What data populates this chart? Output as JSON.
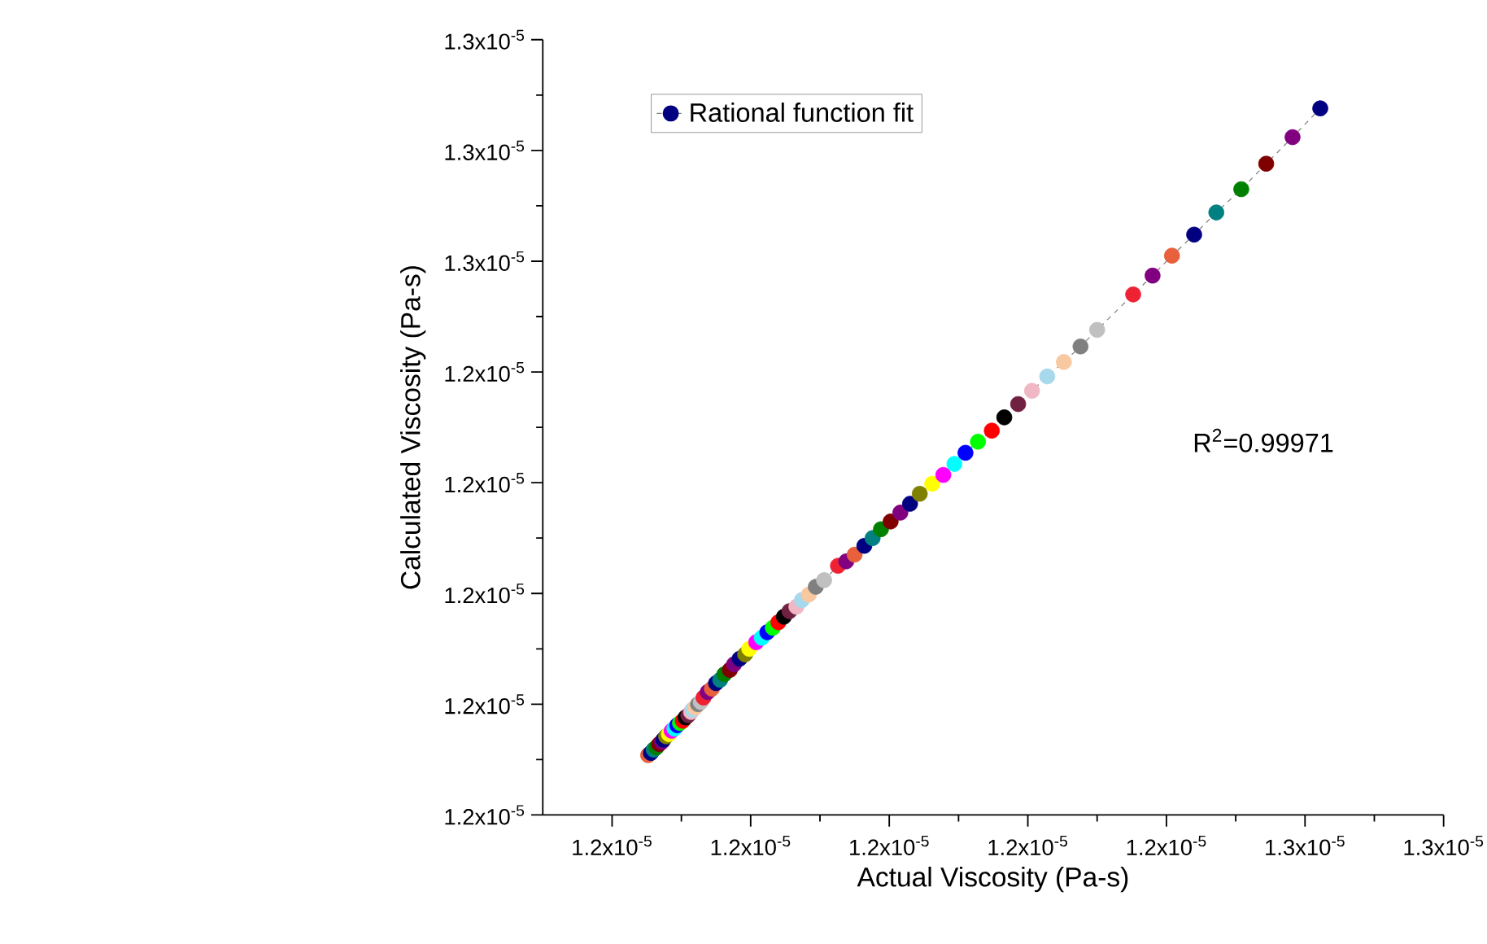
{
  "chart_data": {
    "type": "line",
    "xlabel": "Actual Viscosity (Pa-s)",
    "ylabel": "Calculated Viscosity (Pa-s)",
    "annotations": [
      "R$^{2}$=0.99971"
    ],
    "xlim": [
      1.195e-05,
      1.26e-05
    ],
    "ylim": [
      1.2e-05,
      1.27e-05
    ],
    "xticks": [
      {
        "value": 1.2e-05,
        "label": "1.2x10$^{-5}$"
      },
      {
        "value": 1.21e-05,
        "label": "1.2x10$^{-5}$"
      },
      {
        "value": 1.22e-05,
        "label": "1.2x10$^{-5}$"
      },
      {
        "value": 1.23e-05,
        "label": "1.2x10$^{-5}$"
      },
      {
        "value": 1.24e-05,
        "label": "1.2x10$^{-5}$"
      },
      {
        "value": 1.25e-05,
        "label": "1.3x10$^{-5}$"
      },
      {
        "value": 1.26e-05,
        "label": "1.3x10$^{-5}$"
      }
    ],
    "yticks": [
      {
        "value": 1.2e-05,
        "label": "1.2x10$^{-5}$"
      },
      {
        "value": 1.21e-05,
        "label": "1.2x10$^{-5}$"
      },
      {
        "value": 1.22e-05,
        "label": "1.2x10$^{-5}$"
      },
      {
        "value": 1.23e-05,
        "label": "1.2x10$^{-5}$"
      },
      {
        "value": 1.24e-05,
        "label": "1.2x10$^{-5}$"
      },
      {
        "value": 1.25e-05,
        "label": "1.3x10$^{-5}$"
      },
      {
        "value": 1.26e-05,
        "label": "1.3x10$^{-5}$"
      },
      {
        "value": 1.27e-05,
        "label": "1.3x10$^{-5}$"
      }
    ],
    "legend": "top left",
    "marker": "circle",
    "line_style": "dashed",
    "series": [
      {
        "name": "Rational function fit",
        "color": "#808080",
        "x": [
          1.2026e-05,
          1.2028e-05,
          1.203e-05,
          1.2032e-05,
          1.2034e-05,
          1.2036e-05,
          1.2037e-05,
          1.2039e-05,
          1.2041e-05,
          1.2043e-05,
          1.2045e-05,
          1.2047e-05,
          1.2049e-05,
          1.2051e-05,
          1.2053e-05,
          1.2055e-05,
          1.2057e-05,
          1.2058e-05,
          1.206e-05,
          1.2062e-05,
          1.2064e-05,
          1.2066e-05,
          1.2069e-05,
          1.2072e-05,
          1.2075e-05,
          1.2078e-05,
          1.2081e-05,
          1.2085e-05,
          1.2088e-05,
          1.2092e-05,
          1.2096e-05,
          1.2099e-05,
          1.2104e-05,
          1.2108e-05,
          1.2112e-05,
          1.2116e-05,
          1.212e-05,
          1.2124e-05,
          1.2128e-05,
          1.2133e-05,
          1.2137e-05,
          1.2142e-05,
          1.2147e-05,
          1.2153e-05,
          1.2163e-05,
          1.2169e-05,
          1.2175e-05,
          1.2182e-05,
          1.2188e-05,
          1.2194e-05,
          1.2201e-05,
          1.2208e-05,
          1.2215e-05,
          1.2222e-05,
          1.2231e-05,
          1.2239e-05,
          1.2247e-05,
          1.2255e-05,
          1.2264e-05,
          1.2274e-05,
          1.2283e-05,
          1.2293e-05,
          1.2303e-05,
          1.2314e-05,
          1.2326e-05,
          1.2338e-05,
          1.235e-05,
          1.2376e-05,
          1.239e-05,
          1.2404e-05,
          1.242e-05,
          1.2436e-05,
          1.2454e-05,
          1.2472e-05,
          1.2491e-05,
          1.2511e-05
        ],
        "values": [
          1.2054e-05,
          1.2056e-05,
          1.2059e-05,
          1.2061e-05,
          1.2064e-05,
          1.2066e-05,
          1.2068e-05,
          1.2071e-05,
          1.2073e-05,
          1.2076e-05,
          1.2078e-05,
          1.2081e-05,
          1.2083e-05,
          1.2085e-05,
          1.2088e-05,
          1.209e-05,
          1.2093e-05,
          1.2095e-05,
          1.2097e-05,
          1.21e-05,
          1.2102e-05,
          1.2106e-05,
          1.2111e-05,
          1.2114e-05,
          1.2119e-05,
          1.2122e-05,
          1.2127e-05,
          1.2131e-05,
          1.2136e-05,
          1.2141e-05,
          1.2145e-05,
          1.215e-05,
          1.2156e-05,
          1.216e-05,
          1.2165e-05,
          1.2169e-05,
          1.2174e-05,
          1.2179e-05,
          1.2184e-05,
          1.2188e-05,
          1.2194e-05,
          1.2199e-05,
          1.2206e-05,
          1.2212e-05,
          1.2225e-05,
          1.2229e-05,
          1.2235e-05,
          1.2243e-05,
          1.225e-05,
          1.2258e-05,
          1.2265e-05,
          1.2273e-05,
          1.2281e-05,
          1.229e-05,
          1.2299e-05,
          1.2307e-05,
          1.2317e-05,
          1.2327e-05,
          1.2337e-05,
          1.2347e-05,
          1.2359e-05,
          1.2371e-05,
          1.2383e-05,
          1.2396e-05,
          1.2409e-05,
          1.2423e-05,
          1.2438e-05,
          1.247e-05,
          1.2487e-05,
          1.2505e-05,
          1.2524e-05,
          1.2544e-05,
          1.2565e-05,
          1.2588e-05,
          1.2612e-05,
          1.2638e-05
        ],
        "colors": [
          "#e8603c",
          "#000080",
          "#008080",
          "#008000",
          "#800000",
          "#800080",
          "#000080",
          "#808000",
          "#ffff00",
          "#ff00ff",
          "#00ffff",
          "#0000ff",
          "#00ff00",
          "#ff0000",
          "#000000",
          "#702040",
          "#f0b8c4",
          "#a8d8ec",
          "#f8c8a0",
          "#808080",
          "#c0c0c0",
          "#ee2233",
          "#800080",
          "#e8603c",
          "#000080",
          "#008080",
          "#008000",
          "#800000",
          "#800080",
          "#000080",
          "#808000",
          "#ffff00",
          "#ff00ff",
          "#00ffff",
          "#0000ff",
          "#00ff00",
          "#ff0000",
          "#000000",
          "#702040",
          "#f0b8c4",
          "#a8d8ec",
          "#f8c8a0",
          "#808080",
          "#c0c0c0",
          "#ee2233",
          "#800080",
          "#e8603c",
          "#000080",
          "#008080",
          "#008000",
          "#800000",
          "#800080",
          "#000080",
          "#808000",
          "#ffff00",
          "#ff00ff",
          "#00ffff",
          "#0000ff",
          "#00ff00",
          "#ff0000",
          "#000000",
          "#702040",
          "#f0b8c4",
          "#a8d8ec",
          "#f8c8a0",
          "#808080",
          "#c0c0c0",
          "#ee2233",
          "#800080",
          "#e8603c",
          "#000080",
          "#008080",
          "#008000",
          "#800000",
          "#800080",
          "#000080"
        ]
      }
    ]
  }
}
